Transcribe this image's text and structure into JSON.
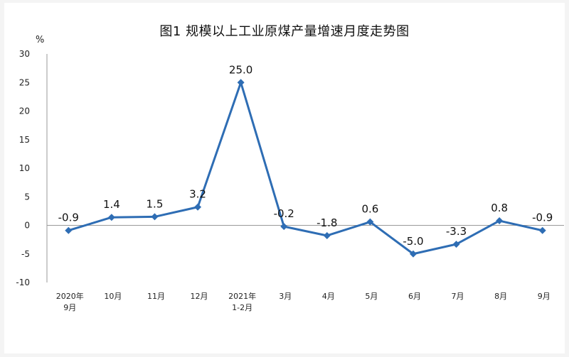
{
  "chart_data": {
    "type": "line",
    "title": "图1  规模以上工业原煤产量增速月度走势图",
    "ylabel": "%",
    "xlabel": "",
    "ylim": [
      -10,
      30
    ],
    "yticks": [
      "30",
      "25",
      "20",
      "15",
      "10",
      "5",
      "0",
      "-5",
      "-10"
    ],
    "grid": false,
    "categories": [
      [
        "2020年",
        "9月"
      ],
      [
        "10月"
      ],
      [
        "11月"
      ],
      [
        "12月"
      ],
      [
        "2021年",
        "1-2月"
      ],
      [
        "3月"
      ],
      [
        "4月"
      ],
      [
        "5月"
      ],
      [
        "6月"
      ],
      [
        "7月"
      ],
      [
        "8月"
      ],
      [
        "9月"
      ]
    ],
    "series": [
      {
        "values": [
          -0.9,
          1.4,
          1.5,
          3.2,
          25.0,
          -0.2,
          -1.8,
          0.6,
          -5.0,
          -3.3,
          0.8,
          -0.9
        ],
        "labels": [
          "-0.9",
          "1.4",
          "1.5",
          "3.2",
          "25.0",
          "-0.2",
          "-1.8",
          "0.6",
          "-5.0",
          "-3.3",
          "0.8",
          "-0.9"
        ],
        "color": "#2e6db4"
      }
    ]
  }
}
